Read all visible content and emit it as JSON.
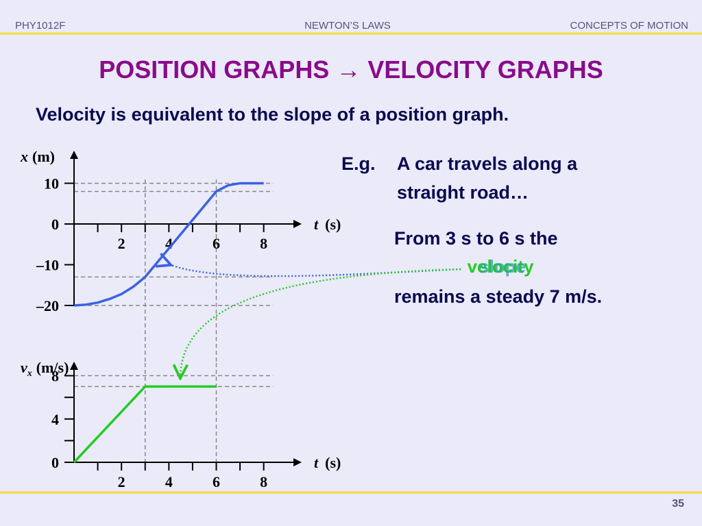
{
  "header": {
    "course": "PHY1012F",
    "topic": "NEWTON’S LAWS",
    "section": "CONCEPTS OF MOTION"
  },
  "title": "POSITION GRAPHS → VELOCITY GRAPHS",
  "subtitle": "Velocity is equivalent to the slope of a position graph.",
  "example": {
    "lead": "E.g.",
    "line1": "A car travels along a",
    "line2": "straight road…"
  },
  "statement": {
    "line1": "From 3 s to 6 s the",
    "word_velocity": "velocity",
    "word_slope": "slope",
    "line3": "remains a steady 7 m/s."
  },
  "page_number": "35",
  "chart_data": [
    {
      "type": "line",
      "ylabel": {
        "symbol": "x",
        "unit": "(m)"
      },
      "xlabel": {
        "symbol": "t",
        "unit": "(s)"
      },
      "x": [
        0,
        0.5,
        1,
        1.5,
        2,
        2.5,
        3,
        4,
        5,
        6,
        6.5,
        7,
        8
      ],
      "series": [
        {
          "color": "#3b62e0",
          "values": [
            -20,
            -19.8,
            -19.3,
            -18.4,
            -17.2,
            -15.4,
            -13,
            -6,
            1,
            8,
            9.5,
            10,
            10
          ]
        }
      ],
      "xlim": [
        0,
        9.6
      ],
      "ylim": [
        -20,
        18
      ],
      "xticks": [
        2,
        4,
        6,
        8
      ],
      "minor_xticks": [
        1,
        3,
        5,
        7
      ],
      "yticks": [
        10,
        0,
        {
          "value": -10,
          "label": "–10"
        },
        {
          "value": -20,
          "label": "–20"
        }
      ],
      "guide_lines_y": [
        10,
        8,
        -13,
        -20
      ],
      "guide_lines_x": [
        3,
        6
      ]
    },
    {
      "type": "line",
      "ylabel": {
        "symbol": "v",
        "subscript": "x",
        "unit": "(m/s)"
      },
      "xlabel": {
        "symbol": "t",
        "unit": "(s)"
      },
      "x": [
        0,
        3,
        6
      ],
      "series": [
        {
          "color": "#22cc22",
          "values": [
            0,
            7,
            7
          ]
        }
      ],
      "xlim": [
        0,
        9.6
      ],
      "ylim": [
        0,
        9.3
      ],
      "xticks": [
        2,
        4,
        6,
        8
      ],
      "minor_xticks": [
        1,
        3,
        5,
        7
      ],
      "yticks": [
        0,
        4,
        8
      ],
      "minor_yticks": [
        2,
        6
      ],
      "guide_lines_y": [
        7,
        8
      ],
      "guide_lines_x": [
        3,
        6
      ]
    }
  ]
}
